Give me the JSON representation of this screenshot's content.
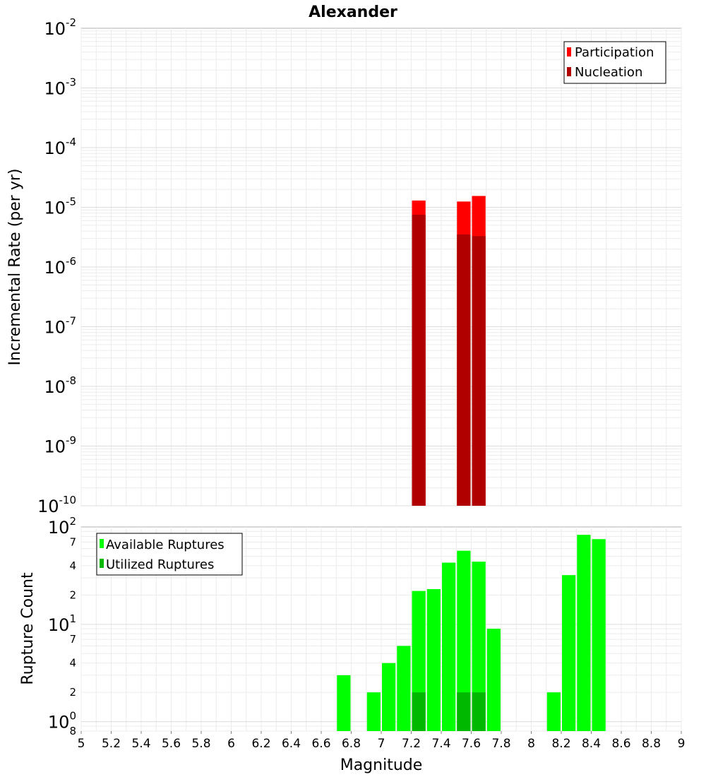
{
  "chart_data": [
    {
      "type": "bar",
      "title": "Alexander",
      "xlabel": "",
      "ylabel": "Incremental Rate (per yr)",
      "yscale": "log",
      "ylim": [
        1e-10,
        0.01
      ],
      "xlim": [
        5,
        9
      ],
      "bar_width": 0.1,
      "major_ticks": [
        {
          "base": "10",
          "exp": "-10",
          "value": 1e-10
        },
        {
          "base": "10",
          "exp": "-9",
          "value": 1e-09
        },
        {
          "base": "10",
          "exp": "-8",
          "value": 1e-08
        },
        {
          "base": "10",
          "exp": "-7",
          "value": 1e-07
        },
        {
          "base": "10",
          "exp": "-6",
          "value": 1e-06
        },
        {
          "base": "10",
          "exp": "-5",
          "value": 1e-05
        },
        {
          "base": "10",
          "exp": "-4",
          "value": 0.0001
        },
        {
          "base": "10",
          "exp": "-3",
          "value": 0.001
        },
        {
          "base": "10",
          "exp": "-2",
          "value": 0.01
        }
      ],
      "legend": {
        "position": "top-right",
        "items": [
          {
            "label": "Participation",
            "color": "#ff0000"
          },
          {
            "label": "Nucleation",
            "color": "#b00000"
          }
        ]
      },
      "series": [
        {
          "name": "Participation",
          "color": "#ff0000",
          "x": [
            7.25,
            7.55,
            7.65
          ],
          "values": [
            1.3e-05,
            1.25e-05,
            1.55e-05
          ]
        },
        {
          "name": "Nucleation",
          "color": "#b00000",
          "x": [
            7.25,
            7.55,
            7.65
          ],
          "values": [
            7.5e-06,
            3.5e-06,
            3.3e-06
          ]
        }
      ]
    },
    {
      "type": "bar",
      "title": "",
      "xlabel": "Magnitude",
      "ylabel": "Rupture Count",
      "yscale": "log",
      "ylim": [
        0.8,
        100
      ],
      "xlim": [
        5,
        9
      ],
      "bar_width": 0.1,
      "x_ticks": [
        "5",
        "5.2",
        "5.4",
        "5.6",
        "5.8",
        "6",
        "6.2",
        "6.4",
        "6.6",
        "6.8",
        "7",
        "7.2",
        "7.4",
        "7.6",
        "7.8",
        "8",
        "8.2",
        "8.4",
        "8.6",
        "8.8",
        "9"
      ],
      "major_ticks": [
        {
          "base": "10",
          "exp": "0",
          "value": 1
        },
        {
          "base": "10",
          "exp": "1",
          "value": 10
        },
        {
          "base": "10",
          "exp": "2",
          "value": 100
        }
      ],
      "minor_ticks": [
        {
          "label": "8",
          "value": 0.8
        },
        {
          "label": "2",
          "value": 2
        },
        {
          "label": "4",
          "value": 4
        },
        {
          "label": "7",
          "value": 7
        },
        {
          "label": "2",
          "value": 20
        },
        {
          "label": "4",
          "value": 40
        },
        {
          "label": "7",
          "value": 70
        }
      ],
      "legend": {
        "position": "top-left",
        "items": [
          {
            "label": "Available Ruptures",
            "color": "#00ff00"
          },
          {
            "label": "Utilized Ruptures",
            "color": "#00b800"
          }
        ]
      },
      "series": [
        {
          "name": "Available Ruptures",
          "color": "#00ff00",
          "x": [
            6.75,
            6.95,
            7.05,
            7.15,
            7.25,
            7.35,
            7.45,
            7.55,
            7.65,
            7.75,
            8.15,
            8.25,
            8.35,
            8.45
          ],
          "values": [
            3,
            2,
            4,
            6,
            22,
            23,
            43,
            57,
            44,
            9,
            2,
            32,
            83,
            75
          ]
        },
        {
          "name": "Utilized Ruptures",
          "color": "#00b800",
          "x": [
            7.25,
            7.55,
            7.65
          ],
          "values": [
            2,
            2,
            2
          ]
        }
      ]
    }
  ]
}
